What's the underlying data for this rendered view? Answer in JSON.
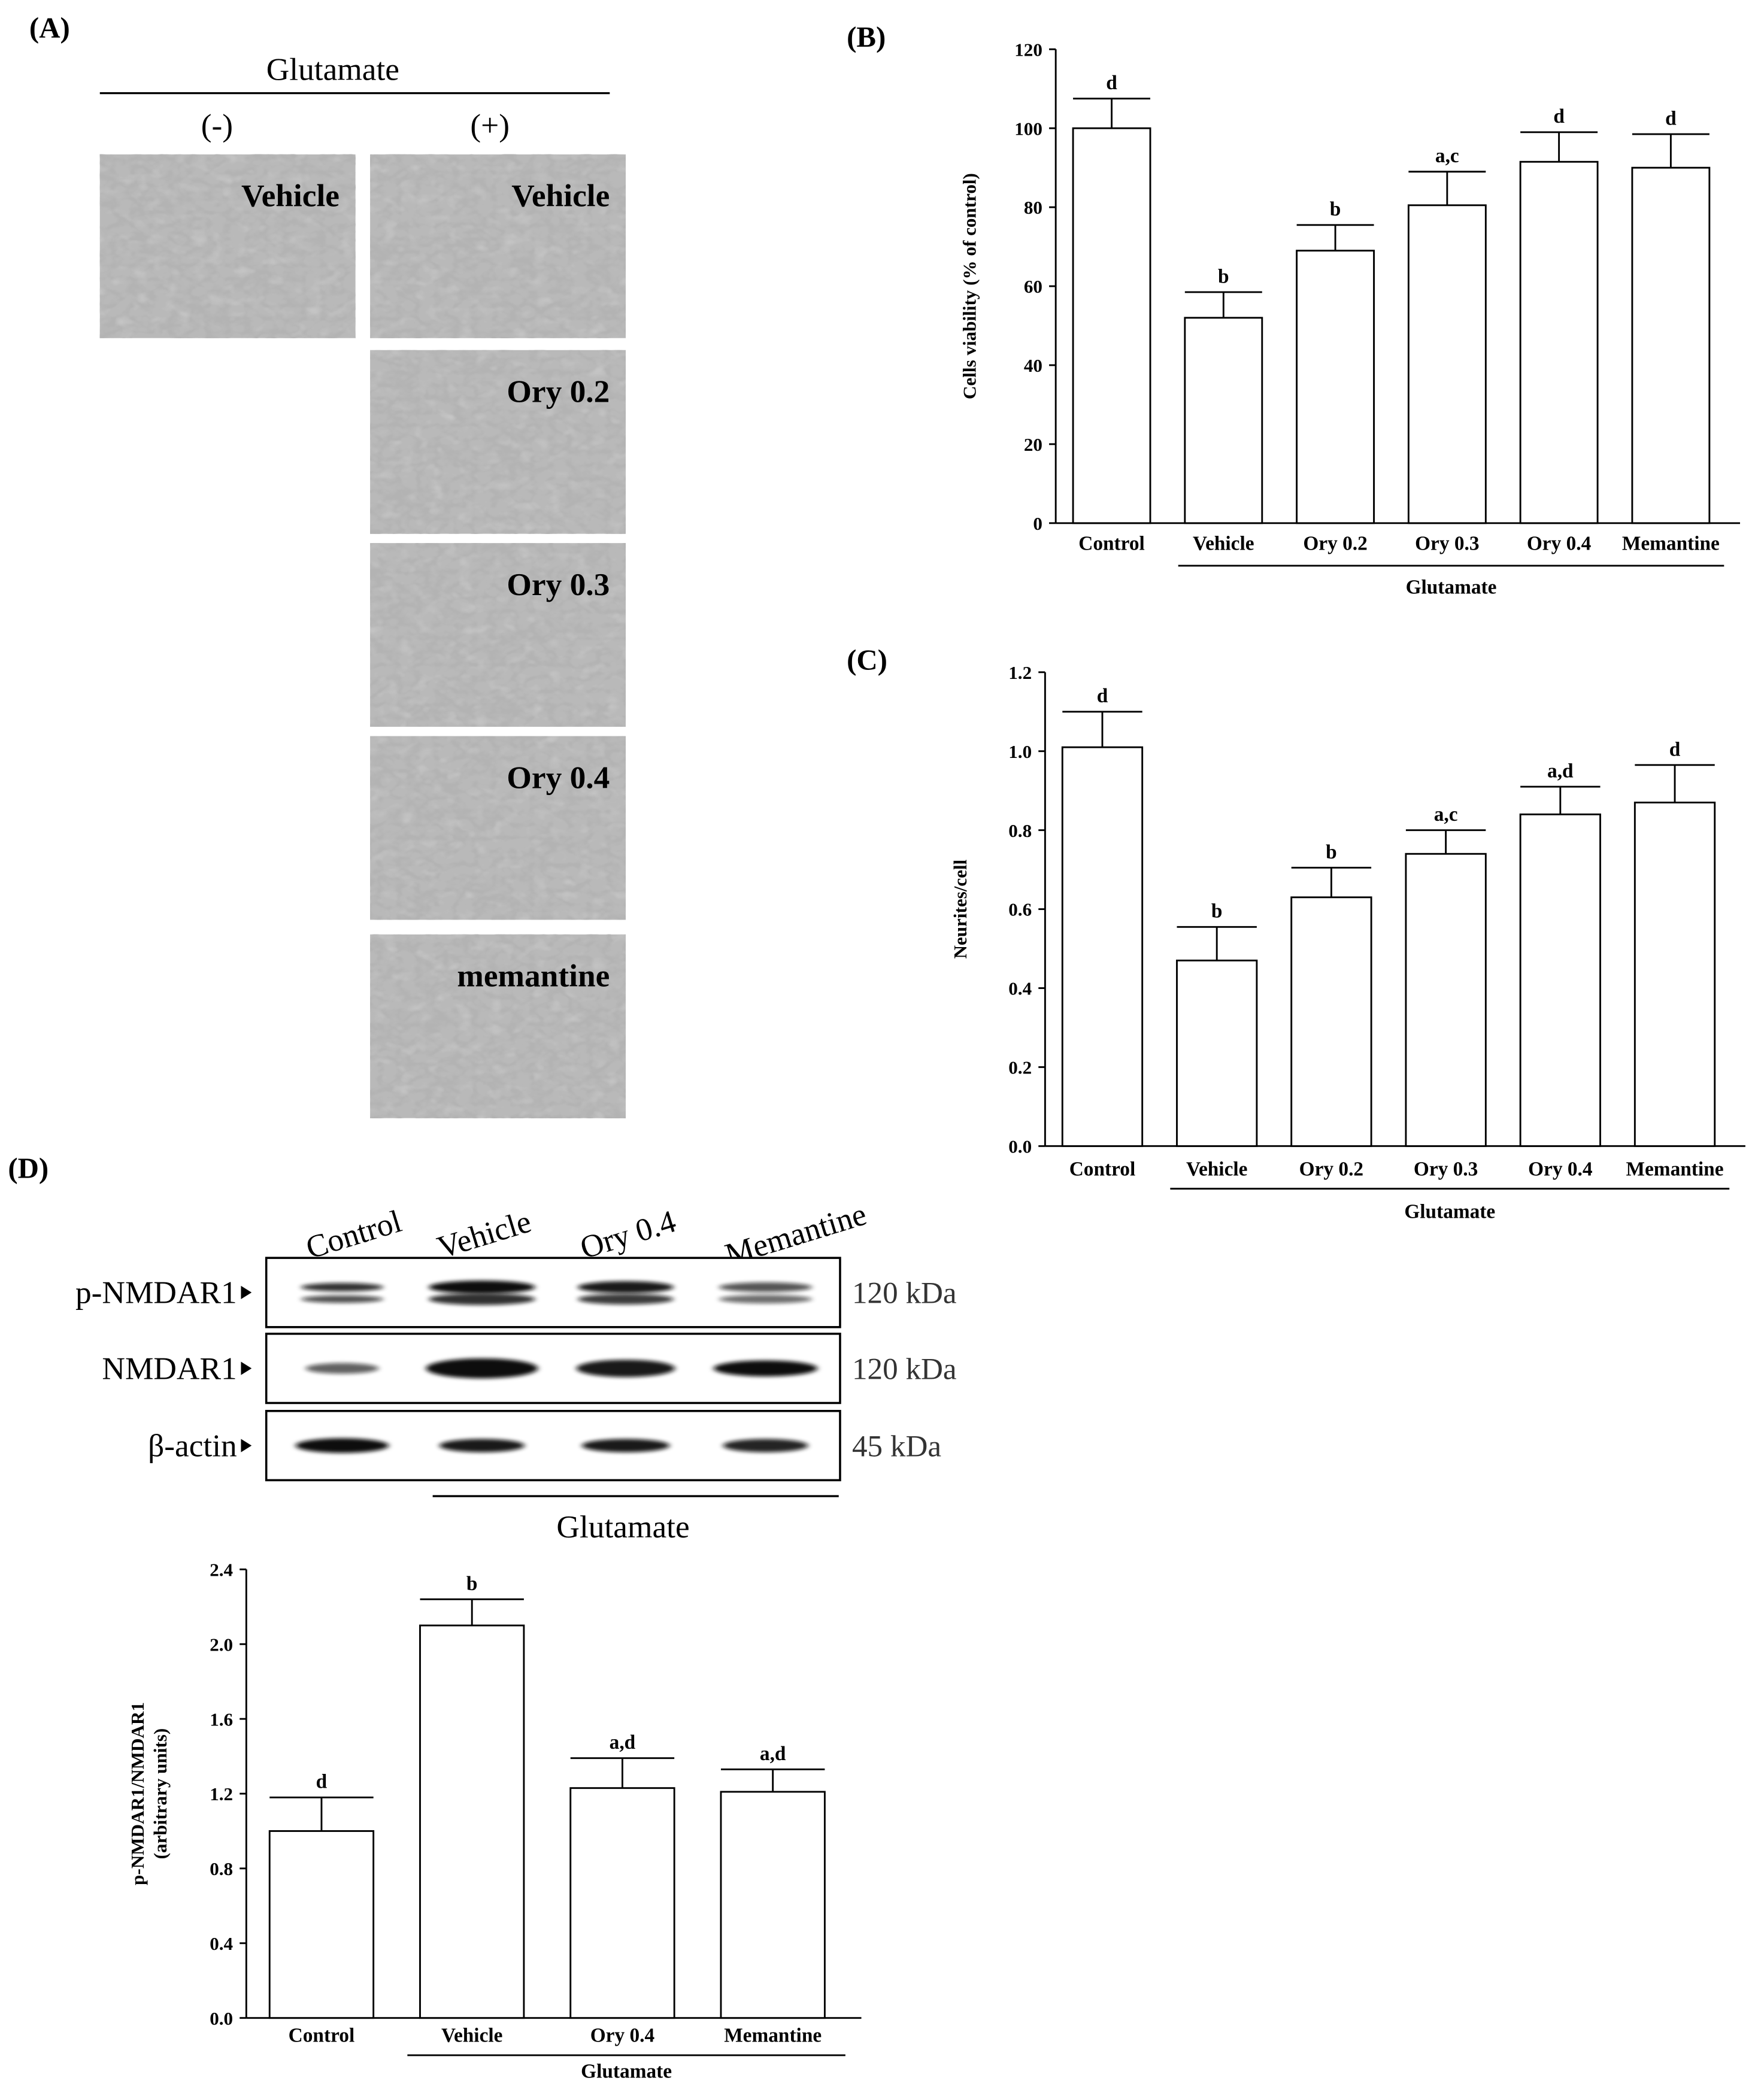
{
  "panel_a": {
    "letter": "(A)",
    "treatment": "Glutamate",
    "minus_label": "(-)",
    "plus_label": "(+)",
    "images": [
      {
        "label": "Vehicle",
        "group": "minus"
      },
      {
        "label": "Vehicle",
        "group": "plus"
      },
      {
        "label": "Ory 0.2",
        "group": "plus"
      },
      {
        "label": "Ory 0.3",
        "group": "plus"
      },
      {
        "label": "Ory 0.4",
        "group": "plus"
      },
      {
        "label": "memantine",
        "group": "plus"
      }
    ]
  },
  "panel_b": {
    "letter": "(B)"
  },
  "panel_c": {
    "letter": "(C)"
  },
  "panel_d": {
    "letter": "(D)",
    "lane_labels": [
      "Control",
      "Vehicle",
      "Ory 0.4",
      "Memantine"
    ],
    "blots": [
      {
        "name": "p-NMDAR1",
        "kda": "120 kDa"
      },
      {
        "name": "NMDAR1",
        "kda": "120 kDa"
      },
      {
        "name": "β-actin",
        "kda": "45 kDa"
      }
    ],
    "treatment": "Glutamate"
  },
  "chart_data": [
    {
      "id": "B",
      "type": "bar",
      "categories": [
        "Control",
        "Vehicle",
        "Ory 0.2",
        "Ory 0.3",
        "Ory 0.4",
        "Memantine"
      ],
      "values": [
        100,
        52,
        69,
        80.5,
        91.5,
        90
      ],
      "errors": [
        7.5,
        6.5,
        6.5,
        8.5,
        7.5,
        8.5
      ],
      "significance": [
        "d",
        "b",
        "b",
        "a,c",
        "d",
        "d"
      ],
      "ylabel": "Cells viability (% of control)",
      "group_label": "Glutamate",
      "ylim": [
        0,
        120
      ],
      "yticks": [
        "0",
        "20",
        "40",
        "60",
        "80",
        "100",
        "120"
      ]
    },
    {
      "id": "C",
      "type": "bar",
      "categories": [
        "Control",
        "Vehicle",
        "Ory 0.2",
        "Ory 0.3",
        "Ory 0.4",
        "Memantine"
      ],
      "values": [
        1.01,
        0.47,
        0.63,
        0.74,
        0.84,
        0.87
      ],
      "errors": [
        0.09,
        0.085,
        0.075,
        0.06,
        0.07,
        0.095
      ],
      "significance": [
        "d",
        "b",
        "b",
        "a,c",
        "a,d",
        "d"
      ],
      "ylabel": "Neurites/cell",
      "group_label": "Glutamate",
      "ylim": [
        0,
        1.2
      ],
      "yticks": [
        "0.0",
        "0.2",
        "0.4",
        "0.6",
        "0.8",
        "1.0",
        "1.2"
      ]
    },
    {
      "id": "D",
      "type": "bar",
      "categories": [
        "Control",
        "Vehicle",
        "Ory 0.4",
        "Memantine"
      ],
      "values": [
        1.0,
        2.1,
        1.23,
        1.21
      ],
      "errors": [
        0.18,
        0.14,
        0.16,
        0.12
      ],
      "significance": [
        "d",
        "b",
        "a,d",
        "a,d"
      ],
      "ylabel_line1": "p-NMDAR1/NMDAR1",
      "ylabel_line2": "(arbitrary units)",
      "group_label": "Glutamate",
      "ylim": [
        0,
        2.4
      ],
      "yticks": [
        "0.0",
        "0.4",
        "0.8",
        "1.2",
        "1.6",
        "2.0",
        "2.4"
      ]
    }
  ]
}
